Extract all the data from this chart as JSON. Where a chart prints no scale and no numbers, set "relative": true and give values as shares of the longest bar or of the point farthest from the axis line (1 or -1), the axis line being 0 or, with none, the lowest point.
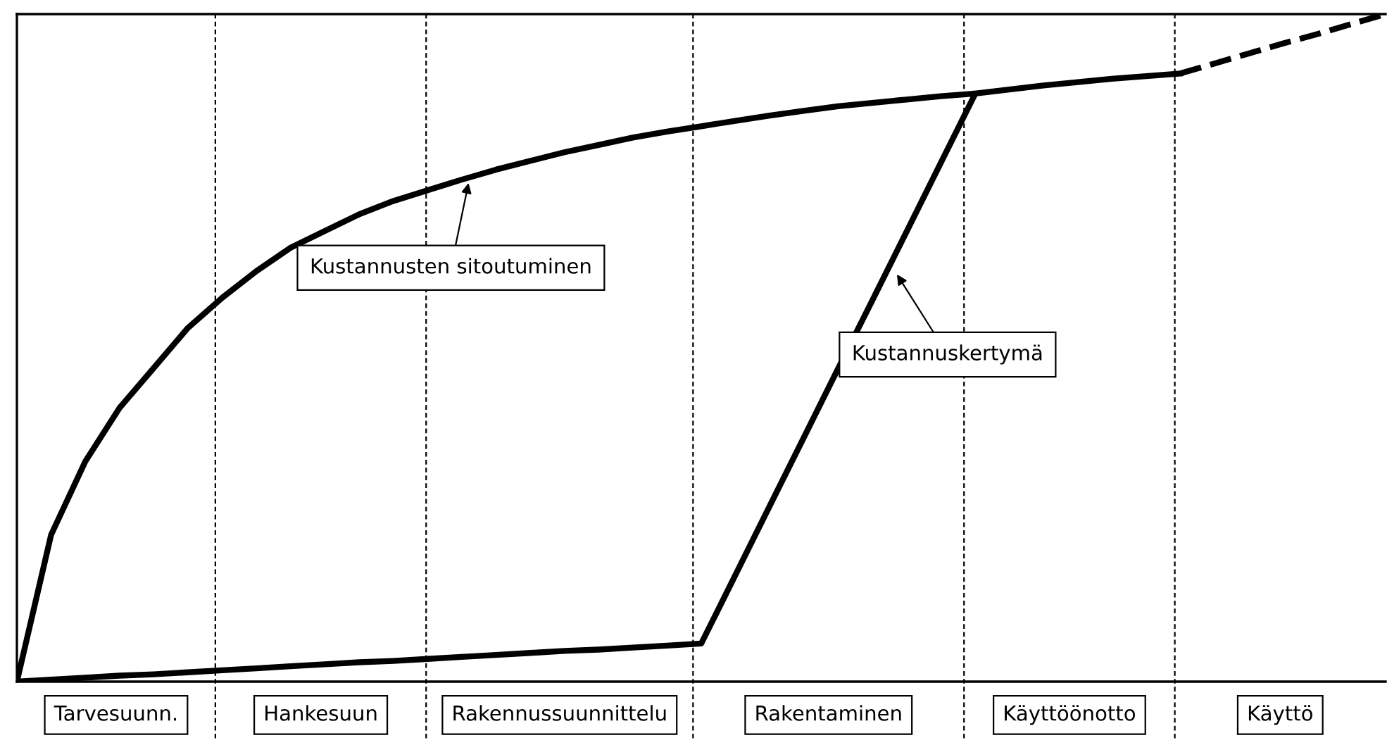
{
  "chart_data": {
    "type": "line",
    "relative": true,
    "tick_labels": false,
    "categories": [
      null,
      null,
      null,
      null,
      null,
      null,
      null,
      null,
      null,
      null,
      null,
      null,
      null,
      null,
      null,
      null,
      null,
      null,
      null,
      null,
      null,
      null,
      null,
      null,
      null,
      null,
      null,
      null,
      null,
      null,
      null,
      null,
      null,
      null,
      null,
      null,
      null,
      null,
      null,
      null,
      null
    ],
    "series": [
      {
        "color": "#000000",
        "values": [
          0,
          0.22,
          0.33,
          0.41,
          0.47,
          0.53,
          0.575,
          0.615,
          0.65,
          0.675,
          0.7,
          0.72,
          0.736,
          0.752,
          0.767,
          0.78,
          0.793,
          0.804,
          0.815,
          0.824,
          0.832,
          0.84,
          0.848,
          0.855,
          0.862,
          0.867,
          0.872,
          0.877,
          0.881,
          0.887,
          0.893,
          0.898,
          0.903,
          0.907,
          0.911,
          null,
          null,
          null,
          null,
          null,
          null
        ]
      },
      {
        "color": "#000000",
        "values": [
          0,
          0.003,
          0.006,
          0.009,
          0.011,
          0.014,
          0.017,
          0.02,
          0.023,
          0.026,
          0.029,
          0.031,
          0.034,
          0.037,
          0.04,
          0.043,
          0.046,
          0.048,
          0.051,
          0.054,
          0.057,
          0.16,
          0.263,
          0.366,
          0.469,
          0.571,
          0.674,
          0.777,
          0.88,
          null,
          null,
          null,
          null,
          null,
          null,
          null,
          null,
          null,
          null,
          null,
          null
        ]
      },
      {
        "color": "#000000",
        "line_style": "dashed",
        "values": [
          null,
          null,
          null,
          null,
          null,
          null,
          null,
          null,
          null,
          null,
          null,
          null,
          null,
          null,
          null,
          null,
          null,
          null,
          null,
          null,
          null,
          null,
          null,
          null,
          null,
          null,
          null,
          null,
          null,
          null,
          null,
          null,
          null,
          null,
          0.911,
          0.926,
          0.941,
          0.956,
          0.97,
          0.985,
          1
        ]
      }
    ],
    "annotations": [
      "Kustannusten sitoutuminen",
      "Kustannuskertymä",
      "Tarvesuunn.",
      "Hankesuun",
      "Rakennussuunnittelu",
      "Rakentaminen",
      "Käyttöönotto",
      "Käyttö"
    ]
  }
}
